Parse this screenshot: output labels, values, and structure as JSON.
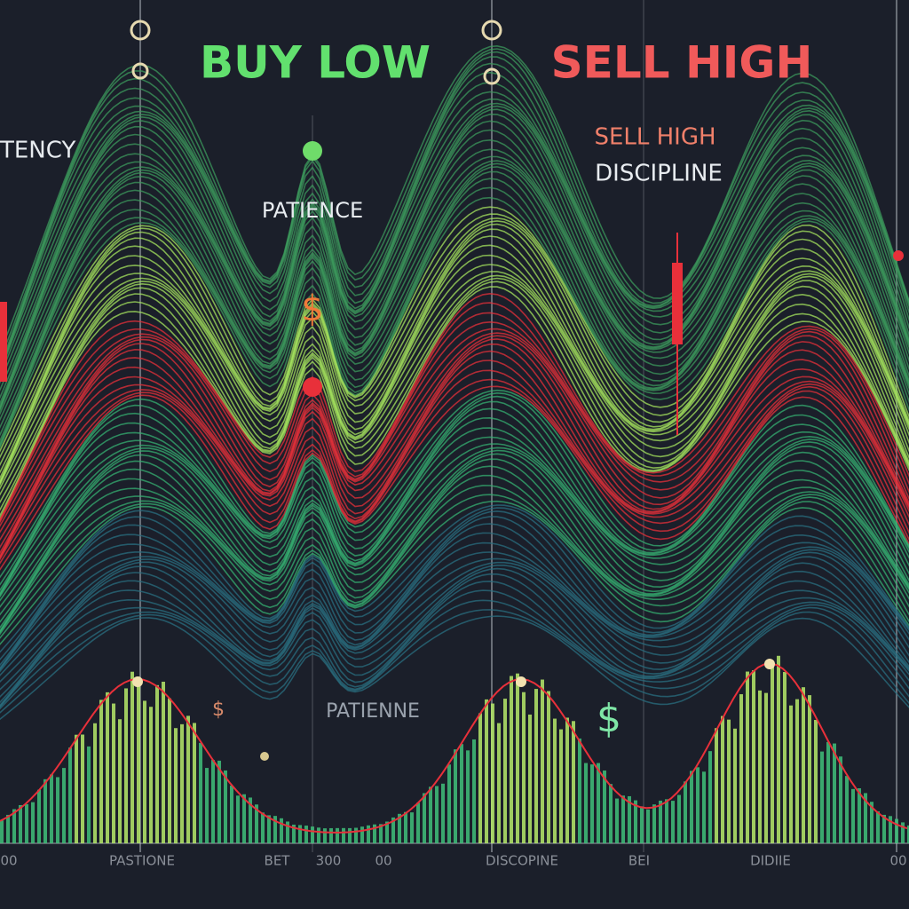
{
  "header": {
    "title_left": "BUY LOW",
    "title_right": "SELL HIGH"
  },
  "labels": {
    "left": "TENCY",
    "patience": "PATIENCE",
    "sell_high": "SELL HIGH",
    "discipline": "DISCIPLINE",
    "patienne": "PATIENNE"
  },
  "symbols": [
    "$",
    "$",
    "$"
  ],
  "axis_labels": [
    "00",
    "PASTIONE",
    "BET",
    "300",
    "00",
    "DISCOPINE",
    "BEI",
    "DIDIIE",
    "00"
  ]
}
